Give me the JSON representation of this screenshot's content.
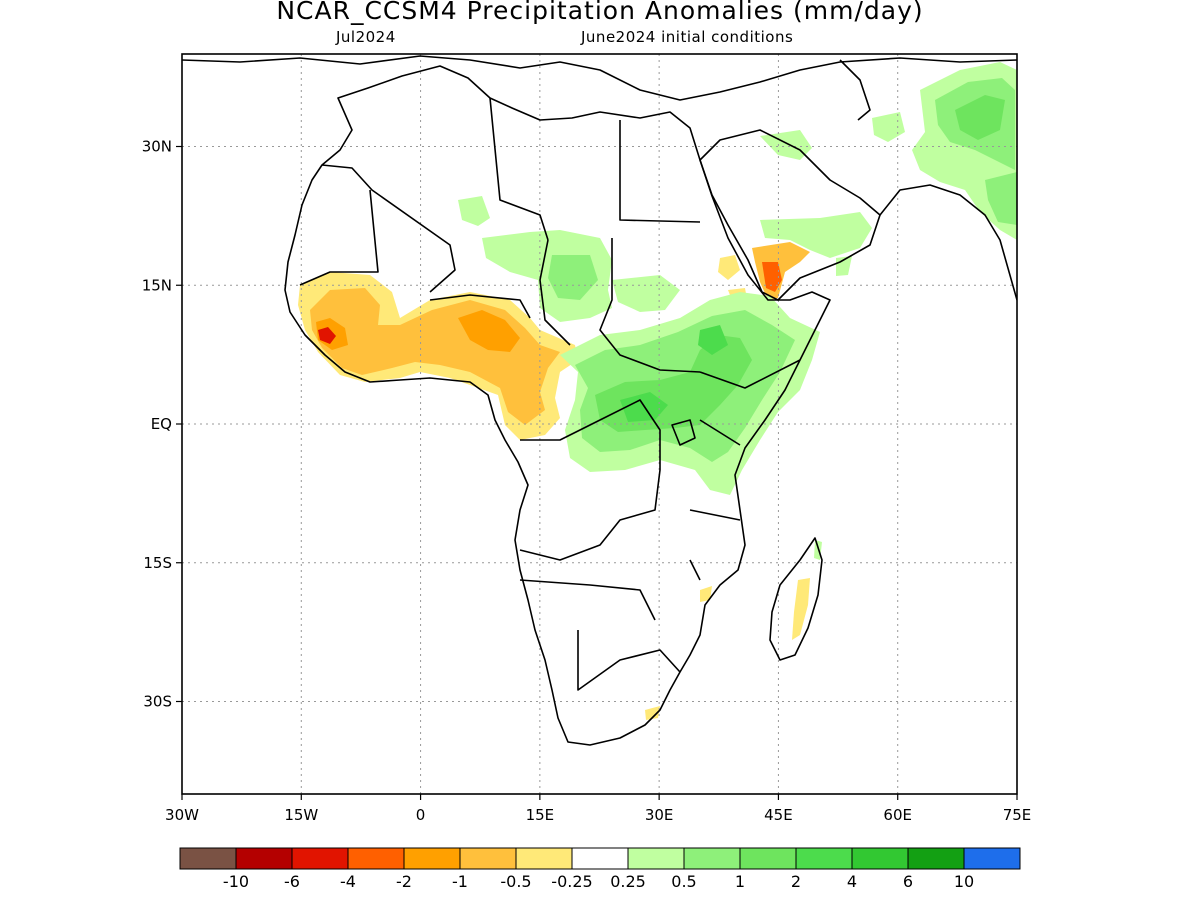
{
  "title": "NCAR_CCSM4 Precipitation Anomalies (mm/day)",
  "subtitle_left": "Jul2024",
  "subtitle_right": "June2024 initial conditions",
  "map": {
    "lon_range": [
      -30,
      75
    ],
    "lat_range": [
      -40,
      40
    ],
    "x_ticks": [
      {
        "lon": -30,
        "label": "30W"
      },
      {
        "lon": -15,
        "label": "15W"
      },
      {
        "lon": 0,
        "label": "0"
      },
      {
        "lon": 15,
        "label": "15E"
      },
      {
        "lon": 30,
        "label": "30E"
      },
      {
        "lon": 45,
        "label": "45E"
      },
      {
        "lon": 60,
        "label": "60E"
      },
      {
        "lon": 75,
        "label": "75E"
      }
    ],
    "y_ticks": [
      {
        "lat": 30,
        "label": "30N"
      },
      {
        "lat": 15,
        "label": "15N"
      },
      {
        "lat": 0,
        "label": "EQ"
      },
      {
        "lat": -15,
        "label": "15S"
      },
      {
        "lat": -30,
        "label": "30S"
      }
    ],
    "grid": "dotted",
    "colors": {
      "dry_light": "#ffe978",
      "dry_mid": "#ffc03c",
      "dry_strong": "#ffa000",
      "dry_very": "#ff6000",
      "dry_extreme": "#e11400",
      "wet_light": "#c0ffa0",
      "wet_mid": "#8ef07a",
      "wet_strong": "#6ee45e",
      "wet_very": "#4cdc4c"
    }
  },
  "colorbar": {
    "colors": [
      "#7a5244",
      "#b40000",
      "#e11400",
      "#ff6000",
      "#ffa000",
      "#ffc03c",
      "#ffe978",
      "#ffffff",
      "#c0ffa0",
      "#8ef07a",
      "#6ee45e",
      "#4cdc4c",
      "#32c832",
      "#13a013",
      "#1e6eeb"
    ],
    "labels": [
      "-10",
      "-6",
      "-4",
      "-2",
      "-1",
      "-0.5",
      "-0.25",
      "0.25",
      "0.5",
      "1",
      "2",
      "4",
      "6",
      "10"
    ]
  }
}
